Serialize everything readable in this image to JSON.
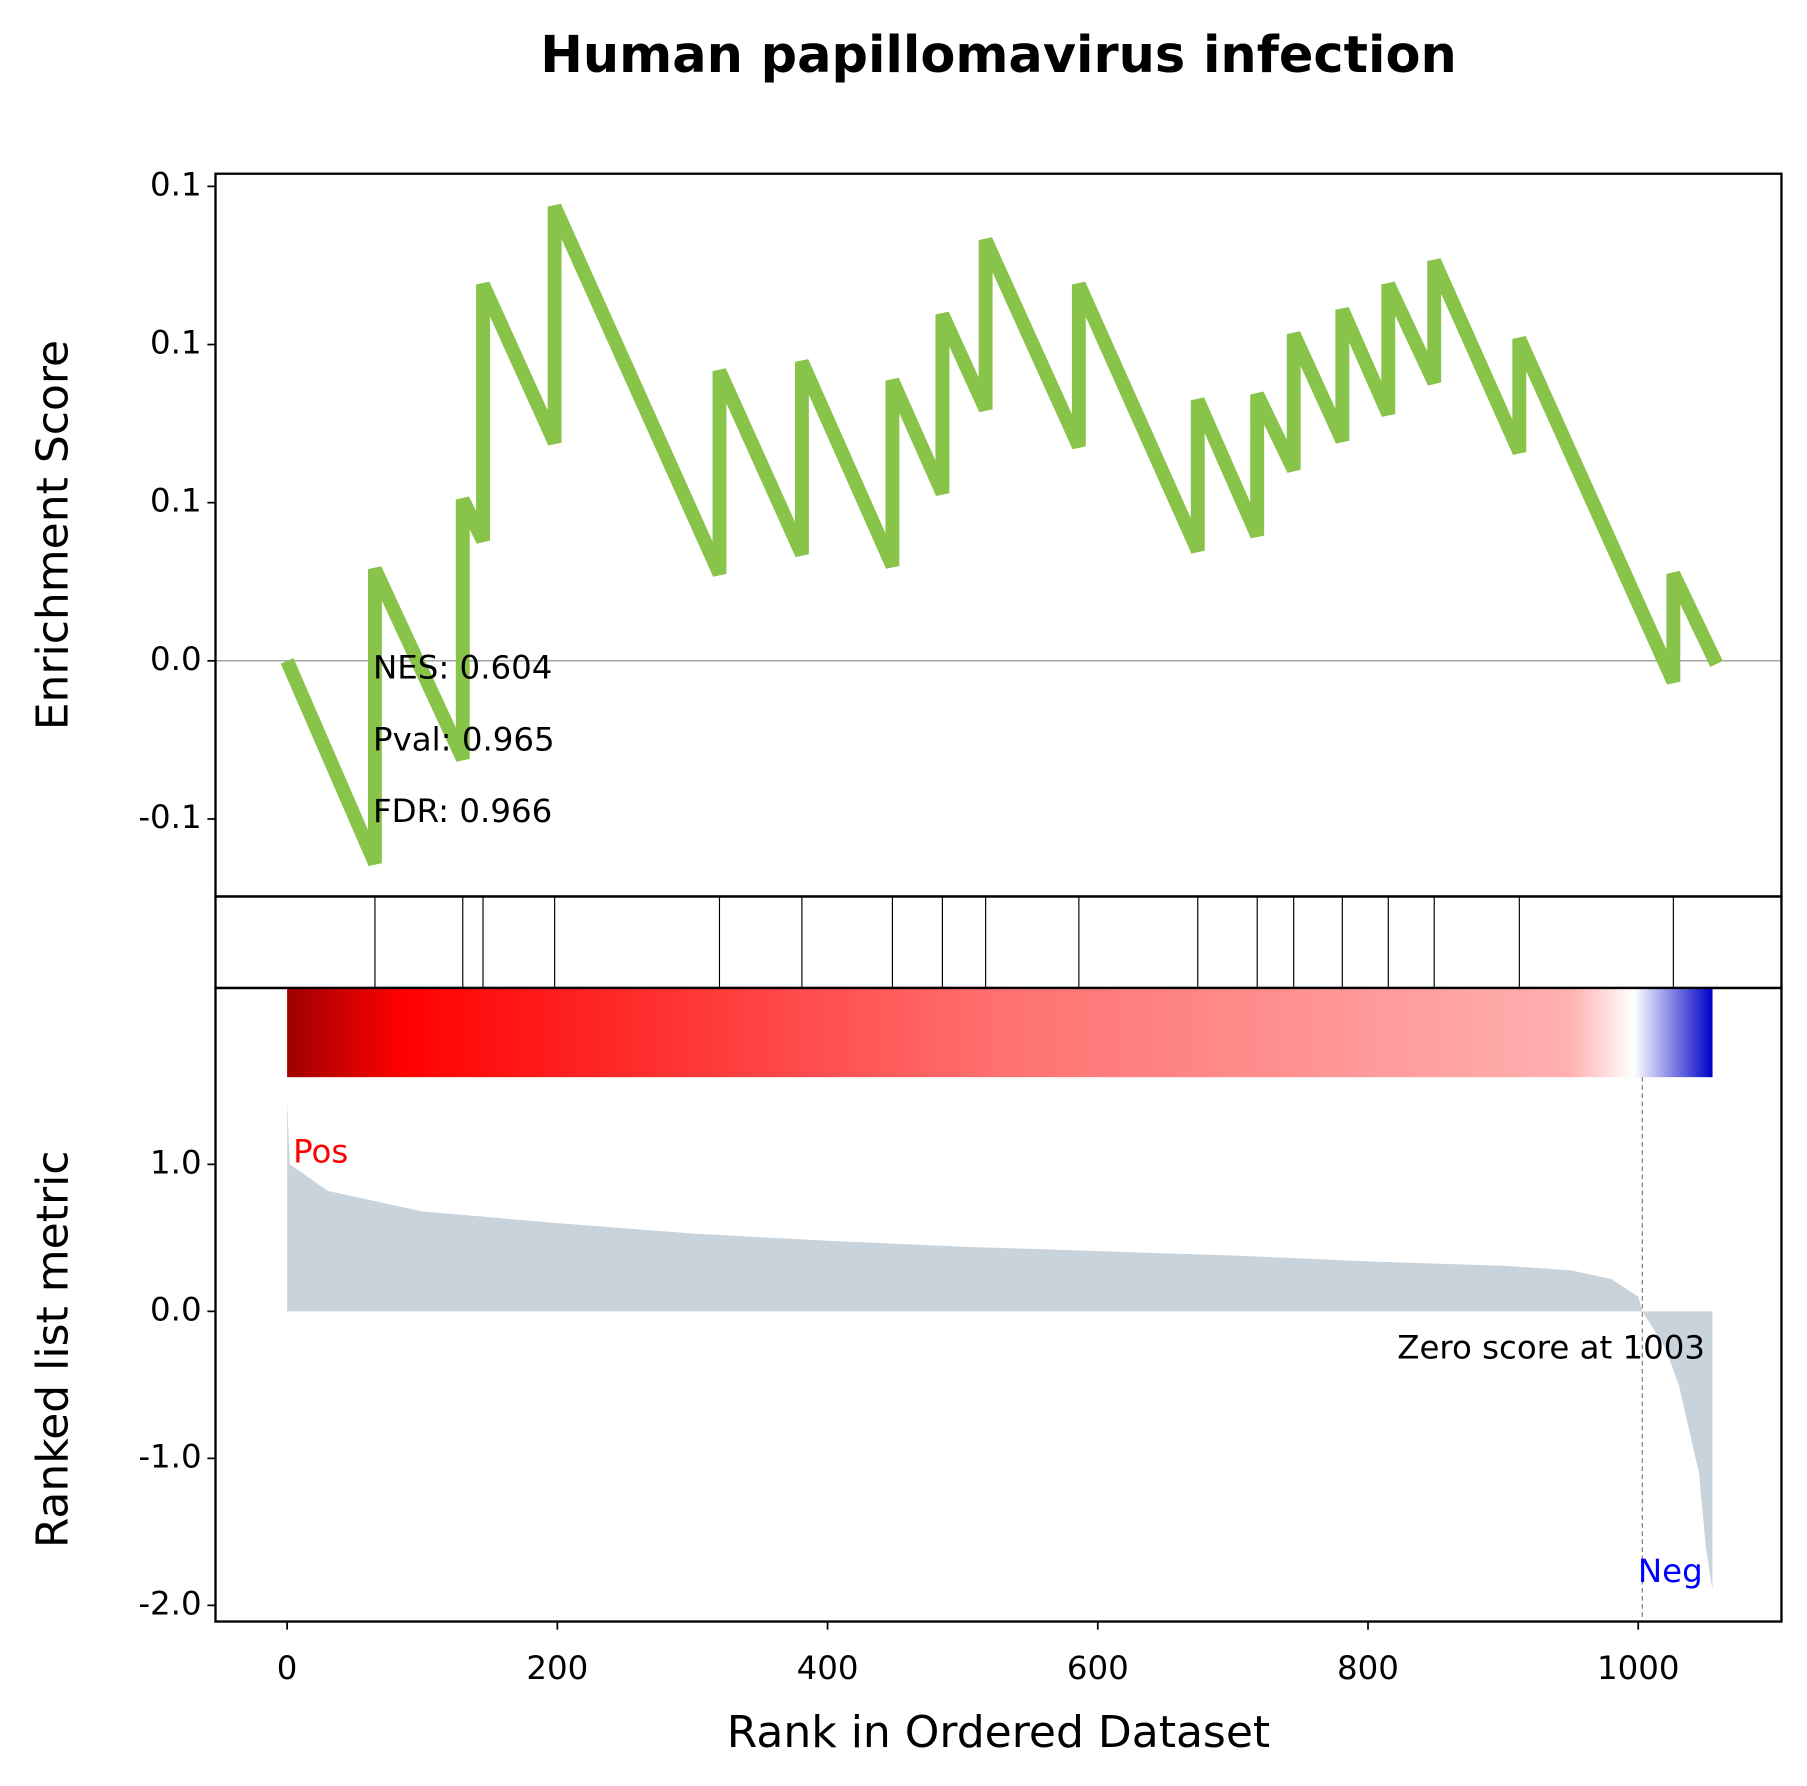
{
  "chart_data": [
    {
      "type": "line",
      "title": "Human papillomavirus infection",
      "ylabel": "Enrichment Score",
      "x": [
        0,
        65,
        65,
        130,
        130,
        145,
        145,
        198,
        198,
        320,
        320,
        381,
        381,
        448,
        448,
        485,
        485,
        517,
        517,
        586,
        586,
        674,
        674,
        718,
        718,
        745,
        745,
        781,
        781,
        815,
        815,
        849,
        849,
        912,
        912,
        1026,
        1026,
        1058
      ],
      "values": [
        0,
        -0.064,
        0.029,
        -0.031,
        0.051,
        0.038,
        0.119,
        0.069,
        0.1436,
        0.0275,
        0.0916,
        0.0337,
        0.0945,
        0.03,
        0.0886,
        0.053,
        0.1095,
        0.0795,
        0.133,
        0.0678,
        0.119,
        0.0348,
        0.0824,
        0.0396,
        0.0842,
        0.0604,
        0.1033,
        0.0696,
        0.111,
        0.078,
        0.119,
        0.088,
        0.1264,
        0.066,
        0.1018,
        -0.0066,
        0.0275,
        -0.001
      ],
      "color": "#88c34a",
      "hits": [
        65,
        130,
        145,
        198,
        320,
        381,
        448,
        485,
        517,
        586,
        674,
        718,
        745,
        781,
        815,
        849,
        912,
        1026
      ],
      "xlim": [
        -53,
        1106
      ],
      "ylim": [
        -0.0745,
        0.154
      ],
      "yticks": [
        {
          "value": 0.15,
          "label": "0.1"
        },
        {
          "value": 0.1,
          "label": "0.1"
        },
        {
          "value": 0.05,
          "label": "0.1"
        },
        {
          "value": 0,
          "label": "0.0"
        },
        {
          "value": -0.05,
          "label": "-0.1"
        }
      ],
      "annotations": [
        "NES: 0.604",
        "Pval: 0.965",
        "FDR: 0.966"
      ]
    },
    {
      "type": "area",
      "ylabel": "Ranked list metric",
      "xlabel": "Rank in Ordered Dataset",
      "x": [
        0,
        2,
        10,
        30,
        60,
        100,
        150,
        200,
        300,
        400,
        500,
        600,
        700,
        800,
        900,
        950,
        980,
        1000,
        1003,
        1010,
        1020,
        1030,
        1040,
        1045,
        1050,
        1055
      ],
      "values": [
        1.42,
        1.0,
        0.95,
        0.82,
        0.76,
        0.68,
        0.64,
        0.6,
        0.53,
        0.48,
        0.44,
        0.41,
        0.38,
        0.34,
        0.31,
        0.28,
        0.22,
        0.1,
        0,
        -0.1,
        -0.25,
        -0.5,
        -0.9,
        -1.1,
        -1.6,
        -1.9
      ],
      "color": "#c8d3dc",
      "xlim": [
        -53,
        1106
      ],
      "ylim": [
        -2.11,
        2.2
      ],
      "xticks": [
        0,
        200,
        400,
        600,
        800,
        1000
      ],
      "yticks": [
        {
          "value": 1,
          "label": "1.0"
        },
        {
          "value": 0,
          "label": "0.0"
        },
        {
          "value": -1,
          "label": "-1.0"
        },
        {
          "value": -2,
          "label": "-2.0"
        }
      ],
      "pos_label": "Pos",
      "neg_label": "Neg",
      "zero_text": "Zero score at 1003",
      "zero_rank": 1003
    }
  ]
}
